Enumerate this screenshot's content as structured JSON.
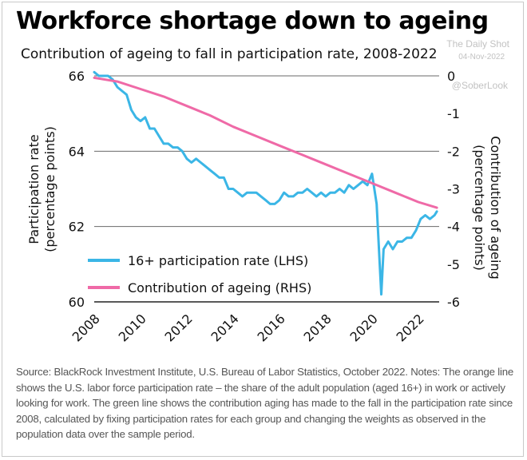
{
  "header": {
    "title": "Workforce shortage down to ageing",
    "subtitle": "Contribution of ageing to fall in participation rate, 2008-2022"
  },
  "watermark": {
    "line1": "The Daily Shot",
    "line2": "04-Nov-2022",
    "line3": "@SoberLook"
  },
  "source_note": "Source: BlackRock Investment Institute, U.S. Bureau of Labor Statistics, October 2022. Notes: The orange line shows the U.S. labor force participation rate – the share of the adult population (aged 16+) in work or actively looking for work. The green line shows the contribution aging has made to the fall in the participation rate since 2008, calculated by fixing participation rates for each group and changing the weights as observed in the population data over the sample period.",
  "chart_data": {
    "type": "line",
    "xlim": [
      2008,
      2022.9
    ],
    "x_ticks": [
      "2008",
      "2010",
      "2012",
      "2014",
      "2016",
      "2018",
      "2020",
      "2022"
    ],
    "y_left": {
      "label": "Participation rate\n(percentage points)",
      "lim": [
        60,
        66
      ],
      "ticks": [
        "60",
        "62",
        "64",
        "66"
      ]
    },
    "y_right": {
      "label": "Contribution of ageing\n(percentage points)",
      "lim": [
        -6,
        0
      ],
      "ticks": [
        "0",
        "-1",
        "-2",
        "-3",
        "-4",
        "-5",
        "-6"
      ]
    },
    "grid": "horizontal",
    "legend": "bottom-left",
    "colors": {
      "participation": "#3bb6e6",
      "ageing": "#ef6aa7"
    },
    "series": [
      {
        "name": "16+ participation rate (LHS)",
        "axis": "left",
        "x": [
          2008.0,
          2008.2,
          2008.4,
          2008.6,
          2008.8,
          2009.0,
          2009.2,
          2009.4,
          2009.6,
          2009.8,
          2010.0,
          2010.2,
          2010.4,
          2010.6,
          2010.8,
          2011.0,
          2011.2,
          2011.4,
          2011.6,
          2011.8,
          2012.0,
          2012.2,
          2012.4,
          2012.6,
          2012.8,
          2013.0,
          2013.2,
          2013.4,
          2013.6,
          2013.8,
          2014.0,
          2014.2,
          2014.4,
          2014.6,
          2014.8,
          2015.0,
          2015.2,
          2015.4,
          2015.6,
          2015.8,
          2016.0,
          2016.2,
          2016.4,
          2016.6,
          2016.8,
          2017.0,
          2017.2,
          2017.4,
          2017.6,
          2017.8,
          2018.0,
          2018.2,
          2018.4,
          2018.6,
          2018.8,
          2019.0,
          2019.2,
          2019.4,
          2019.6,
          2019.8,
          2020.0,
          2020.1,
          2020.2,
          2020.3,
          2020.4,
          2020.5,
          2020.7,
          2020.9,
          2021.1,
          2021.3,
          2021.5,
          2021.7,
          2021.9,
          2022.1,
          2022.3,
          2022.5,
          2022.7,
          2022.8
        ],
        "values": [
          66.1,
          66.0,
          66.0,
          66.0,
          65.9,
          65.7,
          65.6,
          65.5,
          65.1,
          64.9,
          64.8,
          64.9,
          64.6,
          64.6,
          64.4,
          64.2,
          64.2,
          64.1,
          64.1,
          64.0,
          63.8,
          63.7,
          63.8,
          63.7,
          63.6,
          63.5,
          63.4,
          63.3,
          63.3,
          63.0,
          63.0,
          62.9,
          62.8,
          62.9,
          62.9,
          62.9,
          62.8,
          62.7,
          62.6,
          62.6,
          62.7,
          62.9,
          62.8,
          62.8,
          62.9,
          62.9,
          63.0,
          62.9,
          62.8,
          62.9,
          62.8,
          62.9,
          62.9,
          63.0,
          62.9,
          63.1,
          63.0,
          63.1,
          63.2,
          63.1,
          63.4,
          63.0,
          62.6,
          61.4,
          60.2,
          61.4,
          61.6,
          61.4,
          61.6,
          61.6,
          61.7,
          61.7,
          61.9,
          62.2,
          62.3,
          62.2,
          62.3,
          62.4
        ]
      },
      {
        "name": "Contribution of ageing (RHS)",
        "axis": "right",
        "x": [
          2008.0,
          2009.0,
          2010.0,
          2011.0,
          2012.0,
          2013.0,
          2014.0,
          2015.0,
          2016.0,
          2017.0,
          2018.0,
          2019.0,
          2020.0,
          2021.0,
          2022.0,
          2022.8
        ],
        "values": [
          -0.05,
          -0.15,
          -0.35,
          -0.55,
          -0.8,
          -1.05,
          -1.35,
          -1.6,
          -1.85,
          -2.1,
          -2.35,
          -2.6,
          -2.85,
          -3.1,
          -3.35,
          -3.5
        ]
      }
    ]
  }
}
